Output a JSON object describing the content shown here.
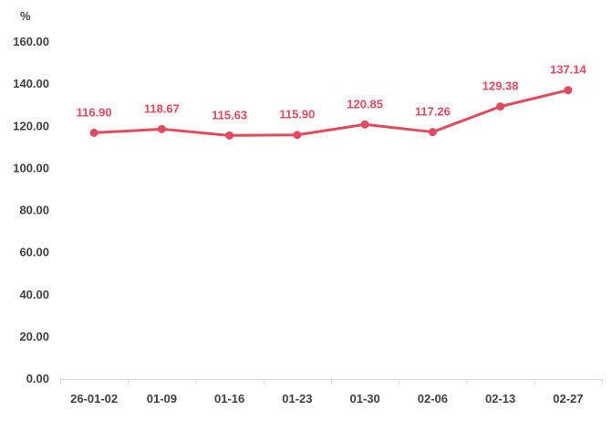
{
  "chart_data": {
    "type": "line",
    "ylabel": "%",
    "ylim": [
      0,
      160
    ],
    "yticks": [
      "0.00",
      "20.00",
      "40.00",
      "60.00",
      "80.00",
      "100.00",
      "120.00",
      "140.00",
      "160.00"
    ],
    "categories": [
      "26-01-02",
      "01-09",
      "01-16",
      "01-23",
      "01-30",
      "02-06",
      "02-13",
      "02-27"
    ],
    "series": [
      {
        "values": [
          116.9,
          118.67,
          115.63,
          115.9,
          120.85,
          117.26,
          129.38,
          137.14
        ],
        "labels": [
          "116.90",
          "118.67",
          "115.63",
          "115.90",
          "120.85",
          "117.26",
          "129.38",
          "137.14"
        ],
        "color": "#e24a5f"
      }
    ],
    "grid": false,
    "legend": "none"
  }
}
